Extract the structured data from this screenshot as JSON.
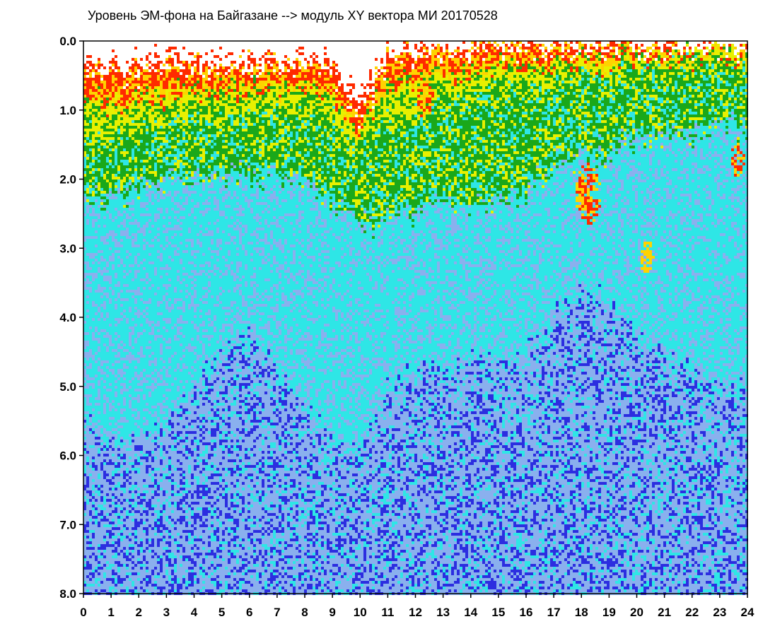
{
  "chart_data": {
    "type": "heatmap",
    "title": "Уровень ЭМ-фона на Байгазане  --> модуль XY вектора МИ  20170528",
    "xlabel": "",
    "ylabel": "",
    "x_range": [
      0,
      24
    ],
    "y_range": [
      0,
      8
    ],
    "y_inverted": true,
    "x_ticks": [
      "0",
      "1",
      "2",
      "3",
      "4",
      "5",
      "6",
      "7",
      "8",
      "9",
      "10",
      "11",
      "12",
      "13",
      "14",
      "15",
      "16",
      "17",
      "18",
      "19",
      "20",
      "21",
      "22",
      "23",
      "24"
    ],
    "y_ticks": [
      "0.0",
      "1.0",
      "2.0",
      "3.0",
      "4.0",
      "5.0",
      "6.0",
      "7.0",
      "8.0"
    ],
    "grid": false,
    "color_scale": [
      "#ffffff",
      "#ff2a00",
      "#ffd200",
      "#e8f000",
      "#1aa81a",
      "#2ee6e6",
      "#8ab0ee",
      "#2c2ee0"
    ],
    "level_profile": {
      "description_hours": [
        0,
        0.5,
        1,
        2,
        3,
        4,
        5,
        6,
        7,
        8,
        9,
        9.5,
        10,
        10.5,
        11,
        12,
        13,
        14,
        15,
        16,
        17,
        18,
        19,
        20,
        21,
        22,
        23,
        24
      ],
      "red_edge": [
        0.35,
        0.4,
        0.45,
        0.4,
        0.35,
        0.35,
        0.35,
        0.3,
        0.3,
        0.3,
        0.4,
        0.9,
        1.0,
        0.6,
        0.2,
        0.15,
        0.1,
        0.05,
        0.02,
        0.02,
        0.02,
        0.02,
        0.02,
        0.02,
        0.02,
        0.02,
        0.02,
        0.02
      ],
      "yellow_edge": [
        1.3,
        1.4,
        1.3,
        1.3,
        1.2,
        1.1,
        1.1,
        1.0,
        1.0,
        1.0,
        1.2,
        1.5,
        1.5,
        1.2,
        1.1,
        1.0,
        0.9,
        0.8,
        0.7,
        0.7,
        0.6,
        0.5,
        0.5,
        0.4,
        0.4,
        0.3,
        0.3,
        0.3
      ],
      "green_edge": [
        2.2,
        2.3,
        2.2,
        2.1,
        2.0,
        1.9,
        1.9,
        1.9,
        1.9,
        2.0,
        2.3,
        2.5,
        2.6,
        2.6,
        2.5,
        2.4,
        2.3,
        2.3,
        2.3,
        2.1,
        1.8,
        1.6,
        1.6,
        1.4,
        1.3,
        1.3,
        1.2,
        1.2
      ],
      "cyan_edge": [
        5.5,
        5.6,
        5.8,
        5.8,
        5.6,
        5.0,
        4.5,
        4.2,
        4.8,
        5.2,
        5.8,
        6.0,
        5.8,
        5.5,
        5.0,
        4.8,
        4.7,
        4.5,
        4.6,
        4.5,
        4.0,
        3.6,
        3.8,
        4.2,
        4.5,
        4.8,
        5.0,
        5.0
      ]
    },
    "hotspots": [
      {
        "x": 18.2,
        "y": 2.2,
        "r": 0.45,
        "color": "#ff2a00"
      },
      {
        "x": 20.3,
        "y": 3.1,
        "r": 0.25,
        "color": "#ffd200"
      },
      {
        "x": 23.6,
        "y": 1.7,
        "r": 0.25,
        "color": "#ff2a00"
      },
      {
        "x": 12.3,
        "y": 0.8,
        "r": 0.3,
        "color": "#ff2a00"
      }
    ]
  }
}
